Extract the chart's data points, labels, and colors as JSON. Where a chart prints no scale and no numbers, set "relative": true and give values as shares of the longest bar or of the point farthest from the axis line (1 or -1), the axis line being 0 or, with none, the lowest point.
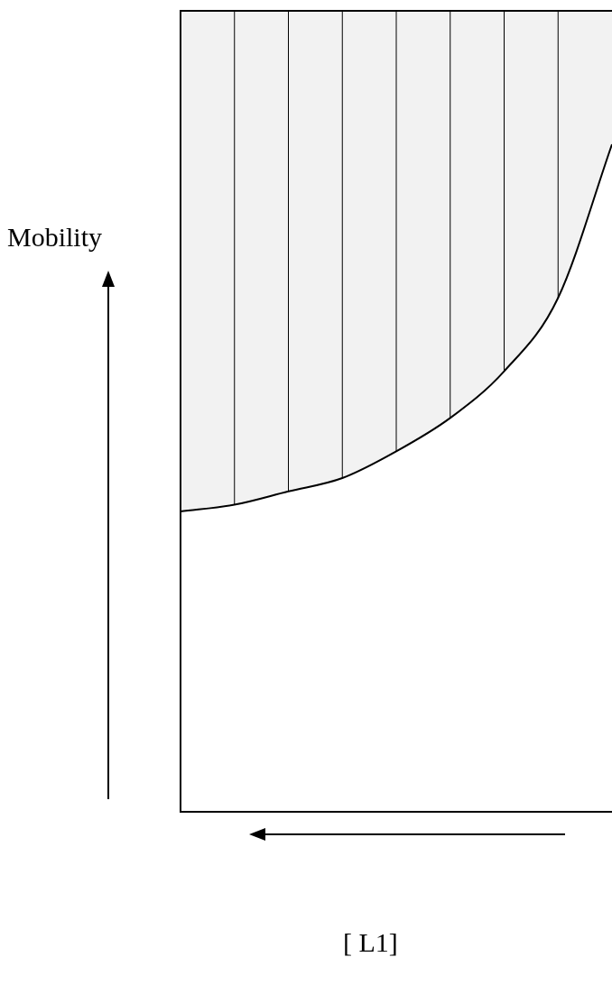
{
  "chart_data": {
    "type": "area",
    "relative": true,
    "xlabel": "[ L1]",
    "ylabel": "Mobility",
    "categories": [
      null,
      null,
      null,
      null,
      null,
      null,
      null,
      null,
      null
    ],
    "series": [
      {
        "color": "#000000",
        "values": [
          0.45,
          0.46,
          0.48,
          0.5,
          0.54,
          0.59,
          0.66,
          0.77,
          1
        ]
      }
    ]
  }
}
